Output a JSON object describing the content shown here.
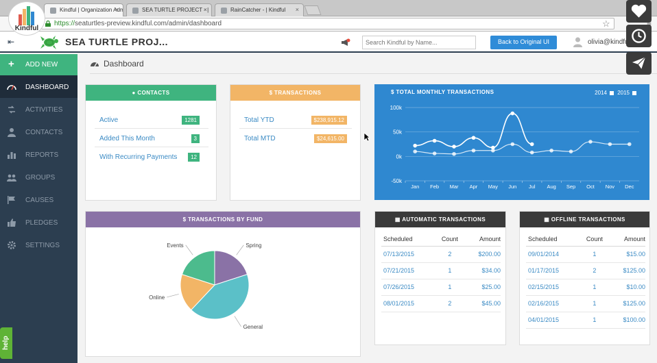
{
  "browser": {
    "tabs": [
      {
        "label": "Kindful | Organization Adm",
        "active": true
      },
      {
        "label": "SEA TURTLE PROJECT - |",
        "active": false
      },
      {
        "label": "RainCatcher - | Kindful",
        "active": false
      }
    ],
    "url_scheme": "https://",
    "url_rest": "seaturtles-preview.kindful.com/admin/dashboard"
  },
  "overlay": {
    "logo_text": "Kindful"
  },
  "header": {
    "org_name": "SEA TURTLE PROJ...",
    "search_placeholder": "Search Kindful by Name...",
    "back_button": "Back to Original UI",
    "user": "olivia@kindful.c"
  },
  "sidebar": {
    "add_new": "ADD NEW",
    "items": [
      {
        "label": "DASHBOARD",
        "active": true
      },
      {
        "label": "ACTIVITIES"
      },
      {
        "label": "CONTACTS"
      },
      {
        "label": "REPORTS"
      },
      {
        "label": "GROUPS"
      },
      {
        "label": "CAUSES"
      },
      {
        "label": "PLEDGES"
      },
      {
        "label": "SETTINGS"
      }
    ],
    "help": "help"
  },
  "page": {
    "title": "Dashboard"
  },
  "contacts": {
    "title": "CONTACTS",
    "rows": [
      {
        "label": "Active",
        "value": "1281"
      },
      {
        "label": "Added This Month",
        "value": "3"
      },
      {
        "label": "With Recurring Payments",
        "value": "12"
      }
    ]
  },
  "transactions": {
    "title": "$ TRANSACTIONS",
    "rows": [
      {
        "label": "Total YTD",
        "value": "$238,915.12"
      },
      {
        "label": "Total MTD",
        "value": "$24,615.00"
      }
    ]
  },
  "fund": {
    "title": "$ TRANSACTIONS BY FUND"
  },
  "automatic": {
    "title": "AUTOMATIC TRANSACTIONS",
    "headers": [
      "Scheduled",
      "Count",
      "Amount"
    ],
    "rows": [
      [
        "07/13/2015",
        "2",
        "$200.00"
      ],
      [
        "07/21/2015",
        "1",
        "$34.00"
      ],
      [
        "07/26/2015",
        "1",
        "$25.00"
      ],
      [
        "08/01/2015",
        "2",
        "$45.00"
      ]
    ]
  },
  "offline": {
    "title": "OFFLINE TRANSACTIONS",
    "headers": [
      "Scheduled",
      "Count",
      "Amount"
    ],
    "rows": [
      [
        "09/01/2014",
        "1",
        "$15.00"
      ],
      [
        "01/17/2015",
        "2",
        "$125.00"
      ],
      [
        "02/15/2015",
        "1",
        "$10.00"
      ],
      [
        "02/16/2015",
        "1",
        "$125.00"
      ],
      [
        "04/01/2015",
        "1",
        "$100.00"
      ]
    ]
  },
  "colors": {
    "sidebar": "#2c3e50",
    "green": "#3fb47f",
    "orange": "#f2b566",
    "purple": "#8a72a6",
    "chart_blue": "#2f88d0",
    "dark_head": "#3a3a3a",
    "link": "#3a8ac4"
  },
  "chart_data": [
    {
      "type": "line",
      "title": "$ TOTAL MONTHLY TRANSACTIONS",
      "categories": [
        "Jan",
        "Feb",
        "Mar",
        "Apr",
        "May",
        "Jun",
        "Jul",
        "Aug",
        "Sep",
        "Oct",
        "Nov",
        "Dec"
      ],
      "y_ticks": [
        "100k",
        "50k",
        "0k",
        "-50k"
      ],
      "ylim": [
        -50000,
        100000
      ],
      "legend": [
        "2014",
        "2015"
      ],
      "series": [
        {
          "name": "2015",
          "values": [
            22000,
            32000,
            20000,
            38000,
            18000,
            88000,
            25000,
            null,
            null,
            null,
            null,
            null
          ]
        },
        {
          "name": "2014",
          "values": [
            10000,
            6000,
            5000,
            12000,
            12000,
            25000,
            8000,
            12000,
            10000,
            30000,
            25000,
            25000
          ]
        }
      ]
    },
    {
      "type": "pie",
      "title": "$ TRANSACTIONS BY FUND",
      "labels": [
        "Spring",
        "General",
        "Online",
        "Events"
      ],
      "values": [
        20,
        42,
        18,
        20
      ],
      "colors": [
        "#8a72a6",
        "#5bc0c8",
        "#f2b566",
        "#4cbb8d"
      ]
    }
  ]
}
